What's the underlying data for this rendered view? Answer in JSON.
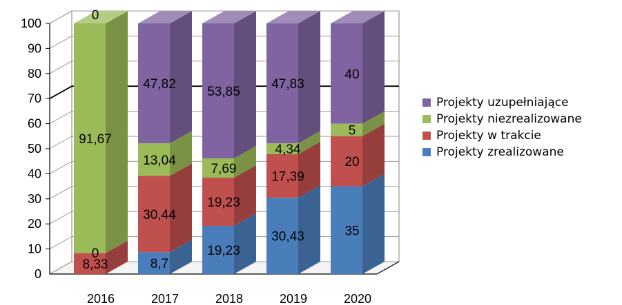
{
  "chart_data": {
    "type": "bar",
    "stacked": true,
    "categories": [
      "2016",
      "2017",
      "2018",
      "2019",
      "2020"
    ],
    "series": [
      {
        "name": "Projekty zrealizowane",
        "color": "#4a7ebb",
        "values": [
          null,
          8.7,
          19.23,
          30.43,
          35
        ],
        "labels": [
          "",
          "8,7",
          "19,23",
          "30,43",
          "35"
        ]
      },
      {
        "name": "Projekty w trakcie",
        "color": "#c0504d",
        "values": [
          8.33,
          30.44,
          19.23,
          17.39,
          20
        ],
        "labels": [
          "8,33",
          "30,44",
          "19,23",
          "17,39",
          "20"
        ]
      },
      {
        "name": "Projekty niezrealizowane",
        "color": "#9bbb59",
        "values": [
          91.67,
          13.04,
          7.69,
          4.34,
          5
        ],
        "labels": [
          "91,67",
          "13,04",
          "7,69",
          "4,34",
          "5"
        ]
      },
      {
        "name": "Projekty uzupełniające",
        "color": "#8064a2",
        "values": [
          0,
          47.82,
          53.85,
          47.83,
          40
        ],
        "labels": [
          "0",
          "47,82",
          "53,85",
          "47,83",
          "40"
        ]
      }
    ],
    "extra_labels": [
      {
        "category": "2016",
        "series": "Projekty zrealizowane",
        "text": "0"
      }
    ],
    "y_ticks": [
      "0",
      "10",
      "20",
      "30",
      "40",
      "50",
      "60",
      "70",
      "80",
      "90",
      "100"
    ],
    "ylim": [
      0,
      100
    ],
    "title": "",
    "xlabel": "",
    "ylabel": "",
    "legend_position": "right",
    "grid": true,
    "style": "3d"
  }
}
